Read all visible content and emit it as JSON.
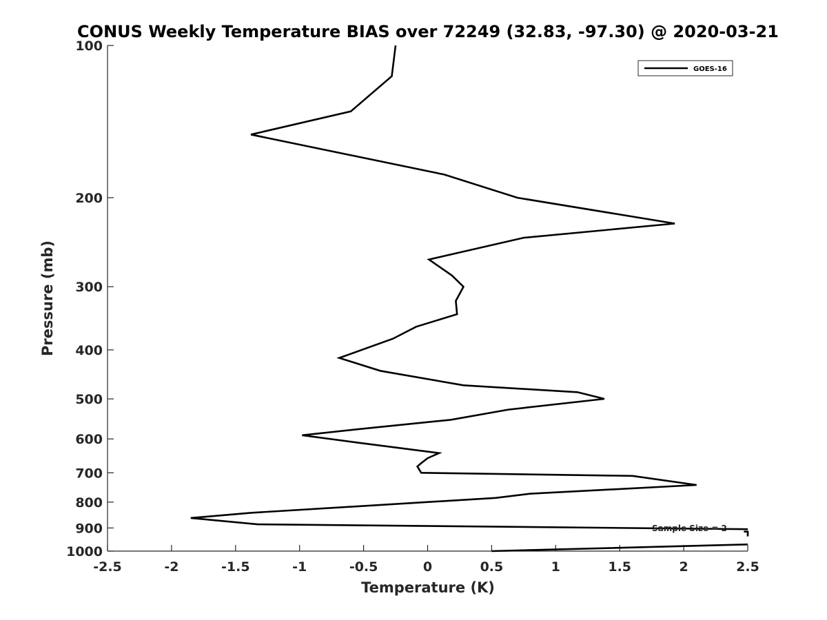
{
  "chart_data": {
    "type": "line",
    "title": "CONUS Weekly Temperature BIAS over 72249 (32.83, -97.30) @ 2020-03-21",
    "xlabel": "Temperature (K)",
    "ylabel": "Pressure (mb)",
    "xlim": [
      -2.5,
      2.5
    ],
    "ylim": [
      100,
      1000
    ],
    "y_scale": "log",
    "y_reversed": true,
    "x_ticks": [
      "-2.5",
      "-2",
      "-1.5",
      "-1",
      "-0.5",
      "0",
      "0.5",
      "1",
      "1.5",
      "2",
      "2.5"
    ],
    "y_ticks": [
      "100",
      "200",
      "300",
      "400",
      "500",
      "600",
      "700",
      "800",
      "900",
      "1000"
    ],
    "grid": false,
    "legend_position": "top-right",
    "annotation": "Sample Size = 2",
    "series": [
      {
        "name": "GOES-16",
        "color": "#000000",
        "points": [
          [
            -0.25,
            100
          ],
          [
            -0.28,
            115
          ],
          [
            -0.6,
            135
          ],
          [
            -1.38,
            150
          ],
          [
            0.13,
            180
          ],
          [
            0.7,
            200
          ],
          [
            1.93,
            225
          ],
          [
            0.75,
            240
          ],
          [
            0.01,
            265
          ],
          [
            0.19,
            285
          ],
          [
            0.28,
            300
          ],
          [
            0.22,
            320
          ],
          [
            0.23,
            340
          ],
          [
            -0.09,
            360
          ],
          [
            -0.27,
            380
          ],
          [
            -0.69,
            415
          ],
          [
            -0.37,
            440
          ],
          [
            0.28,
            470
          ],
          [
            1.17,
            485
          ],
          [
            1.38,
            500
          ],
          [
            0.63,
            525
          ],
          [
            0.18,
            550
          ],
          [
            -0.57,
            575
          ],
          [
            -0.98,
            590
          ],
          [
            -0.55,
            610
          ],
          [
            0.09,
            640
          ],
          [
            0.0,
            655
          ],
          [
            -0.05,
            670
          ],
          [
            -0.08,
            680
          ],
          [
            -0.05,
            700
          ],
          [
            1.6,
            710
          ],
          [
            2.1,
            740
          ],
          [
            0.8,
            770
          ],
          [
            0.53,
            785
          ],
          [
            -1.38,
            840
          ],
          [
            -1.85,
            860
          ],
          [
            -1.33,
            885
          ],
          [
            2.5,
            905
          ],
          [
            null,
            null
          ],
          [
            2.47,
            915
          ],
          [
            2.5,
            915
          ],
          [
            2.5,
            935
          ],
          [
            null,
            null
          ],
          [
            2.5,
            970
          ],
          [
            0.5,
            1000
          ]
        ]
      }
    ]
  }
}
